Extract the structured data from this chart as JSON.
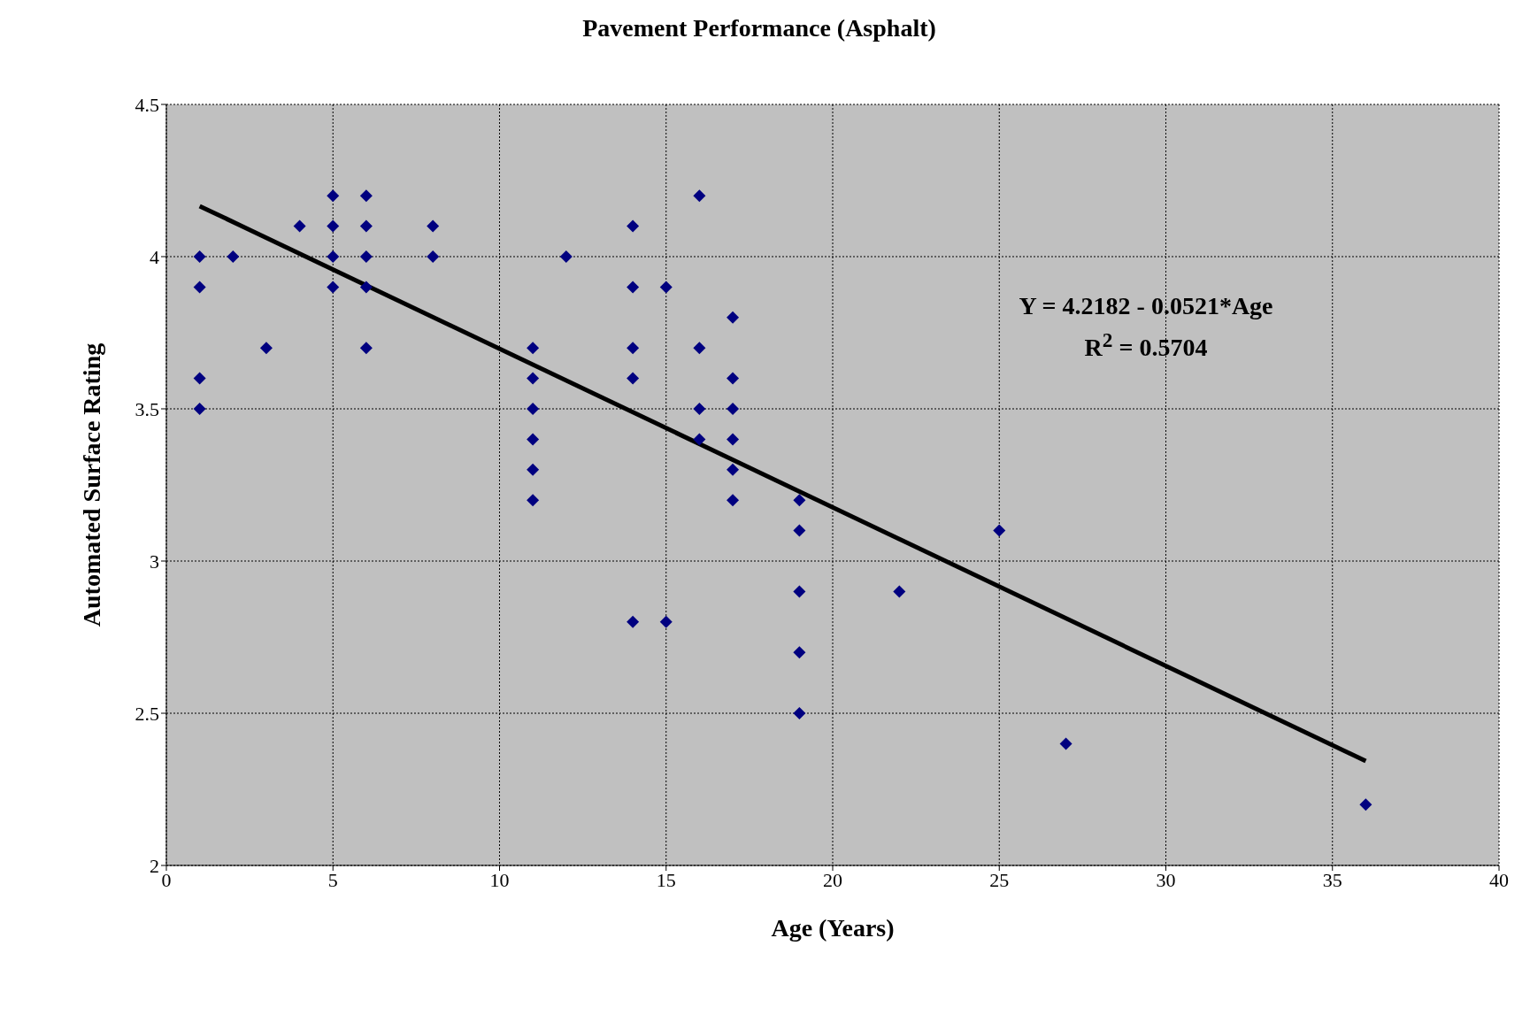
{
  "chart_data": {
    "type": "scatter",
    "title": "Pavement Performance (Asphalt)",
    "xlabel": "Age (Years)",
    "ylabel": "Automated Surface Rating",
    "x": [
      1,
      1,
      1,
      1,
      2,
      3,
      4,
      5,
      5,
      5,
      5,
      6,
      6,
      6,
      6,
      6,
      8,
      8,
      11,
      11,
      11,
      11,
      11,
      11,
      12,
      14,
      14,
      14,
      14,
      14,
      15,
      15,
      16,
      16,
      16,
      16,
      17,
      17,
      17,
      17,
      17,
      17,
      19,
      19,
      19,
      19,
      19,
      22,
      25,
      27,
      36
    ],
    "series": [
      {
        "color": "#000080",
        "marker": "diamond",
        "values": [
          4.0,
          3.9,
          3.6,
          3.5,
          4.0,
          3.7,
          4.1,
          4.2,
          4.1,
          4.0,
          3.9,
          4.2,
          4.1,
          4.0,
          3.9,
          3.7,
          4.1,
          4.0,
          3.7,
          3.6,
          3.5,
          3.4,
          3.3,
          3.2,
          4.0,
          4.1,
          3.9,
          3.7,
          3.6,
          2.8,
          3.9,
          2.8,
          4.2,
          3.7,
          3.5,
          3.4,
          3.8,
          3.6,
          3.5,
          3.4,
          3.3,
          3.2,
          3.2,
          3.1,
          2.9,
          2.7,
          2.5,
          2.9,
          3.1,
          2.4,
          2.2
        ]
      },
      {
        "type": "line",
        "color": "#000000",
        "x": [
          1,
          36
        ],
        "values": [
          4.166,
          2.343
        ]
      }
    ],
    "annotations": [
      "Y = 4.2182 - 0.0521*Age\nR$^{2}$ = 0.5704"
    ],
    "xlim": [
      0,
      40
    ],
    "xticks": [
      0,
      5,
      10,
      15,
      20,
      25,
      30,
      35,
      40
    ],
    "ylim": [
      2,
      4.5
    ],
    "yticks": [
      2,
      2.5,
      3,
      3.5,
      4,
      4.5
    ],
    "grid": true,
    "legend": false,
    "line_style": "solid"
  }
}
